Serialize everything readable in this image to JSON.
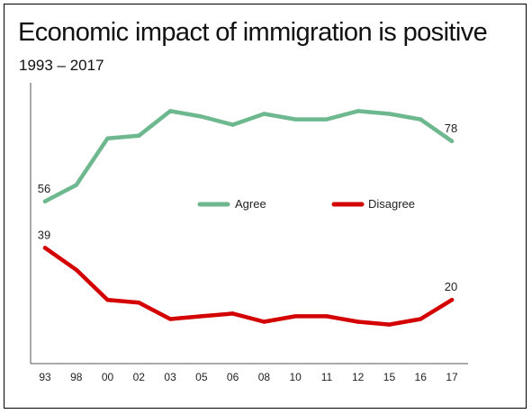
{
  "title": "Economic impact of immigration is positive",
  "subtitle": "1993 – 2017",
  "chart_data": {
    "type": "line",
    "title": "Economic impact of immigration is positive",
    "subtitle": "1993 – 2017",
    "xlabel": "",
    "ylabel": "",
    "categories": [
      "93",
      "98",
      "00",
      "02",
      "03",
      "05",
      "06",
      "08",
      "10",
      "11",
      "12",
      "15",
      "16",
      "17"
    ],
    "series": [
      {
        "name": "Agree",
        "color": "#6db88e",
        "values": [
          56,
          62,
          79,
          80,
          89,
          87,
          84,
          88,
          86,
          86,
          89,
          88,
          86,
          78
        ],
        "labels": [
          {
            "index": 0,
            "text": "56"
          },
          {
            "index": 13,
            "text": "78"
          }
        ]
      },
      {
        "name": "Disagree",
        "color": "#d40000",
        "values": [
          39,
          31,
          20,
          19,
          13,
          14,
          15,
          12,
          14,
          14,
          12,
          11,
          13,
          20
        ],
        "labels": [
          {
            "index": 0,
            "text": "39"
          },
          {
            "index": 13,
            "text": "20"
          }
        ]
      }
    ],
    "ylim": [
      -15,
      115
    ],
    "y_axis_labels": false,
    "grid": false,
    "legend": "center"
  }
}
